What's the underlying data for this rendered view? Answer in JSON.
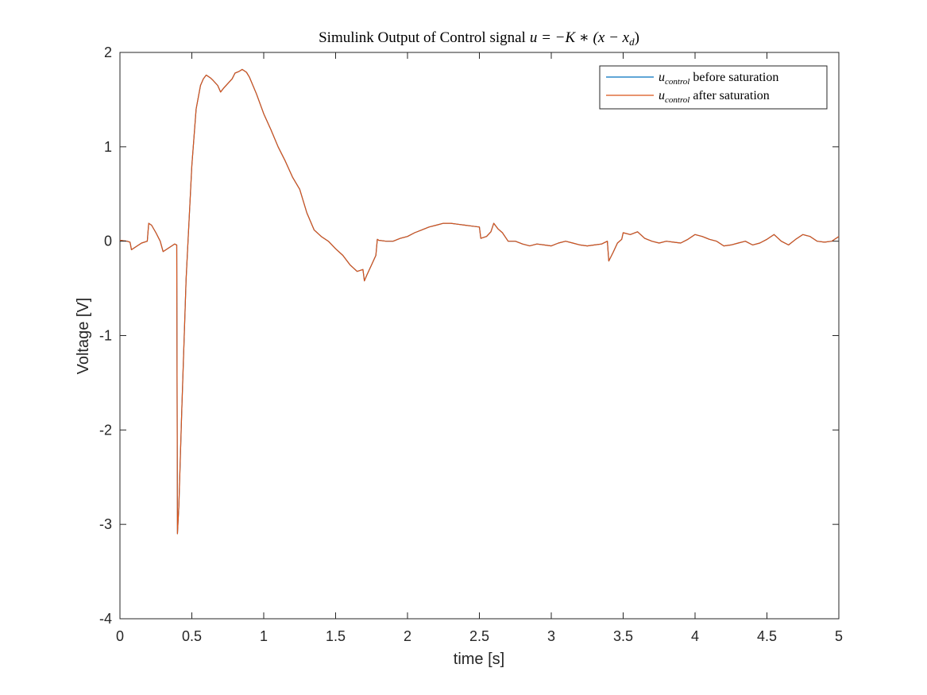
{
  "chart_data": {
    "type": "line",
    "title": "Simulink Output of Control signal",
    "title_math": "u = −K ∗ (x − x",
    "title_math_sub": "d",
    "title_math_end": ")",
    "xlabel": "time [s]",
    "ylabel": "Voltage [V]",
    "xlim": [
      0,
      5
    ],
    "ylim": [
      -4,
      2
    ],
    "xticks": [
      0,
      0.5,
      1,
      1.5,
      2,
      2.5,
      3,
      3.5,
      4,
      4.5,
      5
    ],
    "xtick_labels": [
      "0",
      "0.5",
      "1",
      "1.5",
      "2",
      "2.5",
      "3",
      "3.5",
      "4",
      "4.5",
      "5"
    ],
    "yticks": [
      -4,
      -3,
      -2,
      -1,
      0,
      1,
      2
    ],
    "ytick_labels": [
      "-4",
      "-3",
      "-2",
      "-1",
      "0",
      "1",
      "2"
    ],
    "grid": false,
    "legend_position": "top-right",
    "series": [
      {
        "name": "before saturation",
        "legend_math": "u",
        "legend_sub": "control",
        "color": "#0072BD",
        "x": [
          0,
          0.05,
          0.07,
          0.08,
          0.1,
          0.15,
          0.19,
          0.2,
          0.22,
          0.25,
          0.28,
          0.3,
          0.31,
          0.33,
          0.36,
          0.38,
          0.395,
          0.4,
          0.41,
          0.43,
          0.46,
          0.5,
          0.53,
          0.56,
          0.58,
          0.6,
          0.63,
          0.65,
          0.68,
          0.7,
          0.72,
          0.75,
          0.78,
          0.8,
          0.83,
          0.85,
          0.88,
          0.9,
          0.95,
          1.0,
          1.05,
          1.1,
          1.15,
          1.2,
          1.25,
          1.3,
          1.35,
          1.4,
          1.45,
          1.5,
          1.55,
          1.6,
          1.65,
          1.69,
          1.7,
          1.72,
          1.75,
          1.78,
          1.79,
          1.8,
          1.85,
          1.9,
          1.95,
          2.0,
          2.05,
          2.1,
          2.15,
          2.2,
          2.25,
          2.3,
          2.35,
          2.4,
          2.45,
          2.5,
          2.51,
          2.55,
          2.58,
          2.6,
          2.63,
          2.66,
          2.7,
          2.75,
          2.8,
          2.85,
          2.9,
          2.95,
          3.0,
          3.05,
          3.1,
          3.15,
          3.2,
          3.25,
          3.3,
          3.35,
          3.39,
          3.4,
          3.43,
          3.46,
          3.49,
          3.5,
          3.55,
          3.6,
          3.65,
          3.7,
          3.75,
          3.8,
          3.85,
          3.9,
          3.95,
          4.0,
          4.05,
          4.1,
          4.15,
          4.2,
          4.25,
          4.3,
          4.35,
          4.4,
          4.45,
          4.5,
          4.55,
          4.6,
          4.65,
          4.7,
          4.75,
          4.8,
          4.85,
          4.9,
          4.95,
          5.0
        ],
        "y": [
          0.01,
          0.0,
          -0.01,
          -0.09,
          -0.07,
          -0.02,
          0.0,
          0.19,
          0.17,
          0.09,
          0.0,
          -0.11,
          -0.1,
          -0.08,
          -0.05,
          -0.03,
          -0.04,
          -3.1,
          -2.8,
          -1.8,
          -0.4,
          0.8,
          1.4,
          1.65,
          1.72,
          1.76,
          1.73,
          1.7,
          1.65,
          1.58,
          1.62,
          1.67,
          1.72,
          1.78,
          1.8,
          1.82,
          1.79,
          1.74,
          1.56,
          1.35,
          1.18,
          1.0,
          0.85,
          0.68,
          0.55,
          0.3,
          0.12,
          0.05,
          0.0,
          -0.08,
          -0.15,
          -0.25,
          -0.32,
          -0.3,
          -0.42,
          -0.35,
          -0.25,
          -0.15,
          0.02,
          0.01,
          0.0,
          0.0,
          0.03,
          0.05,
          0.09,
          0.12,
          0.15,
          0.17,
          0.19,
          0.19,
          0.18,
          0.17,
          0.16,
          0.15,
          0.03,
          0.05,
          0.1,
          0.19,
          0.13,
          0.09,
          0.0,
          0.0,
          -0.03,
          -0.05,
          -0.03,
          -0.04,
          -0.05,
          -0.02,
          0.0,
          -0.02,
          -0.04,
          -0.05,
          -0.04,
          -0.03,
          0.0,
          -0.21,
          -0.12,
          -0.02,
          0.02,
          0.09,
          0.07,
          0.1,
          0.03,
          0.0,
          -0.02,
          0.0,
          -0.01,
          -0.02,
          0.02,
          0.07,
          0.05,
          0.02,
          0.0,
          -0.05,
          -0.04,
          -0.02,
          0.0,
          -0.04,
          -0.02,
          0.02,
          0.07,
          0.0,
          -0.04,
          0.02,
          0.07,
          0.05,
          0.0,
          -0.01,
          0.0,
          0.05
        ]
      },
      {
        "name": "after saturation",
        "legend_math": "u",
        "legend_sub": "control",
        "color": "#D95319",
        "same_as": 0
      }
    ]
  }
}
